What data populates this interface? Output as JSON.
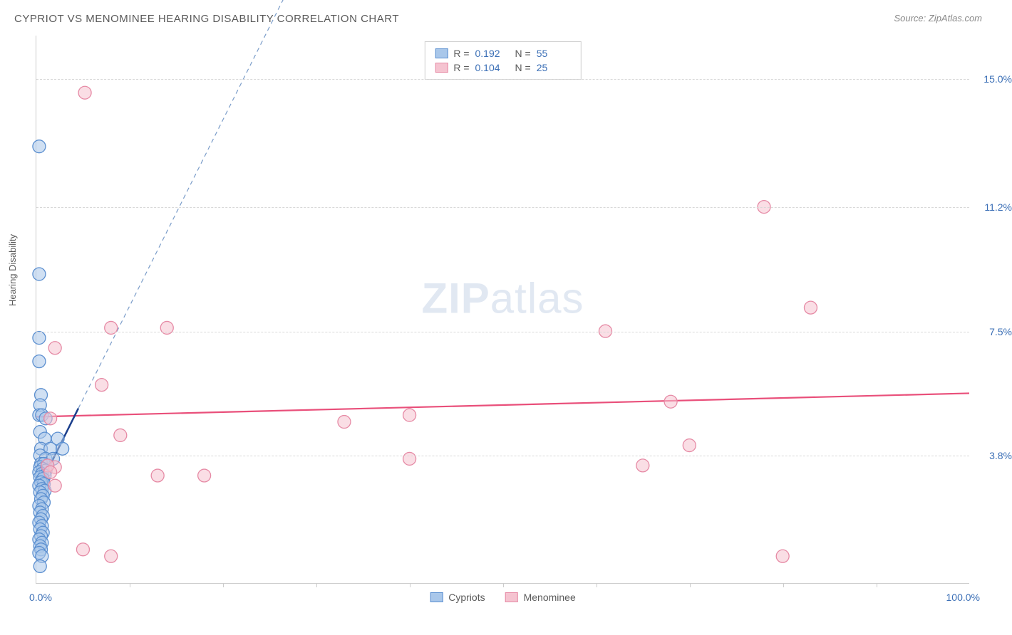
{
  "title": "CYPRIOT VS MENOMINEE HEARING DISABILITY CORRELATION CHART",
  "source": "Source: ZipAtlas.com",
  "ylabel": "Hearing Disability",
  "watermark_bold": "ZIP",
  "watermark_light": "atlas",
  "xaxis": {
    "min_label": "0.0%",
    "max_label": "100.0%",
    "tick_positions_pct": [
      10,
      20,
      30,
      40,
      50,
      60,
      70,
      80,
      90
    ]
  },
  "yaxis": {
    "ticks": [
      {
        "label": "15.0%",
        "value": 15.0
      },
      {
        "label": "11.2%",
        "value": 11.2
      },
      {
        "label": "7.5%",
        "value": 7.5
      },
      {
        "label": "3.8%",
        "value": 3.8
      }
    ],
    "min": 0,
    "max": 16.3
  },
  "legend_stats": [
    {
      "series": "cypriots",
      "r_label": "R =",
      "r_value": "0.192",
      "n_label": "N =",
      "n_value": "55"
    },
    {
      "series": "menominee",
      "r_label": "R =",
      "r_value": "0.104",
      "n_label": "N =",
      "n_value": "25"
    }
  ],
  "legend_bottom": [
    {
      "series": "cypriots",
      "label": "Cypriots"
    },
    {
      "series": "menominee",
      "label": "Menominee"
    }
  ],
  "colors": {
    "cypriots_fill": "#a9c7ea",
    "cypriots_stroke": "#5b8fd0",
    "menominee_fill": "#f5c3d0",
    "menominee_stroke": "#e68aa5",
    "trend_blue_solid": "#1a3e8c",
    "trend_blue_dash": "#7a9cc9",
    "trend_pink": "#e94f7a",
    "axis_text": "#3b6fb6",
    "grid": "#d8d8d8"
  },
  "marker_radius": 9,
  "marker_opacity": 0.55,
  "trend_lines": {
    "blue_solid": {
      "x1": 0.2,
      "y1": 2.8,
      "x2": 4.5,
      "y2": 5.2,
      "width": 2.5
    },
    "blue_dash": {
      "x1": 4.5,
      "y1": 5.2,
      "x2": 33,
      "y2": 21.0,
      "width": 1.2,
      "dash": "6,5"
    },
    "pink": {
      "x1": 0,
      "y1": 4.95,
      "x2": 100,
      "y2": 5.65,
      "width": 2.2
    }
  },
  "series": {
    "cypriots": [
      {
        "x": 0.3,
        "y": 13.0
      },
      {
        "x": 0.3,
        "y": 9.2
      },
      {
        "x": 0.3,
        "y": 7.3
      },
      {
        "x": 0.3,
        "y": 6.6
      },
      {
        "x": 0.5,
        "y": 5.6
      },
      {
        "x": 0.4,
        "y": 5.3
      },
      {
        "x": 0.3,
        "y": 5.0
      },
      {
        "x": 0.6,
        "y": 5.0
      },
      {
        "x": 1.0,
        "y": 4.9
      },
      {
        "x": 0.4,
        "y": 4.5
      },
      {
        "x": 0.9,
        "y": 4.3
      },
      {
        "x": 2.3,
        "y": 4.3
      },
      {
        "x": 0.5,
        "y": 4.0
      },
      {
        "x": 1.5,
        "y": 4.0
      },
      {
        "x": 2.8,
        "y": 4.0
      },
      {
        "x": 0.4,
        "y": 3.8
      },
      {
        "x": 1.0,
        "y": 3.7
      },
      {
        "x": 1.8,
        "y": 3.7
      },
      {
        "x": 0.5,
        "y": 3.55
      },
      {
        "x": 0.8,
        "y": 3.55
      },
      {
        "x": 1.2,
        "y": 3.5
      },
      {
        "x": 0.4,
        "y": 3.45
      },
      {
        "x": 0.7,
        "y": 3.4
      },
      {
        "x": 1.0,
        "y": 3.35
      },
      {
        "x": 0.3,
        "y": 3.3
      },
      {
        "x": 0.6,
        "y": 3.25
      },
      {
        "x": 0.9,
        "y": 3.2
      },
      {
        "x": 0.4,
        "y": 3.15
      },
      {
        "x": 0.7,
        "y": 3.1
      },
      {
        "x": 0.5,
        "y": 3.0
      },
      {
        "x": 0.8,
        "y": 2.95
      },
      {
        "x": 0.3,
        "y": 2.9
      },
      {
        "x": 0.6,
        "y": 2.8
      },
      {
        "x": 0.9,
        "y": 2.75
      },
      {
        "x": 0.4,
        "y": 2.7
      },
      {
        "x": 0.7,
        "y": 2.6
      },
      {
        "x": 0.5,
        "y": 2.5
      },
      {
        "x": 0.8,
        "y": 2.4
      },
      {
        "x": 0.3,
        "y": 2.3
      },
      {
        "x": 0.6,
        "y": 2.2
      },
      {
        "x": 0.4,
        "y": 2.1
      },
      {
        "x": 0.7,
        "y": 2.0
      },
      {
        "x": 0.5,
        "y": 1.9
      },
      {
        "x": 0.3,
        "y": 1.8
      },
      {
        "x": 0.6,
        "y": 1.7
      },
      {
        "x": 0.4,
        "y": 1.6
      },
      {
        "x": 0.7,
        "y": 1.5
      },
      {
        "x": 0.5,
        "y": 1.4
      },
      {
        "x": 0.3,
        "y": 1.3
      },
      {
        "x": 0.6,
        "y": 1.2
      },
      {
        "x": 0.4,
        "y": 1.1
      },
      {
        "x": 0.5,
        "y": 1.0
      },
      {
        "x": 0.3,
        "y": 0.9
      },
      {
        "x": 0.6,
        "y": 0.8
      },
      {
        "x": 0.4,
        "y": 0.5
      }
    ],
    "menominee": [
      {
        "x": 5.2,
        "y": 14.6
      },
      {
        "x": 78,
        "y": 11.2
      },
      {
        "x": 83,
        "y": 8.2
      },
      {
        "x": 61,
        "y": 7.5
      },
      {
        "x": 8,
        "y": 7.6
      },
      {
        "x": 14,
        "y": 7.6
      },
      {
        "x": 2,
        "y": 7.0
      },
      {
        "x": 7,
        "y": 5.9
      },
      {
        "x": 68,
        "y": 5.4
      },
      {
        "x": 70,
        "y": 4.1
      },
      {
        "x": 9,
        "y": 4.4
      },
      {
        "x": 33,
        "y": 4.8
      },
      {
        "x": 40,
        "y": 5.0
      },
      {
        "x": 40,
        "y": 3.7
      },
      {
        "x": 65,
        "y": 3.5
      },
      {
        "x": 13,
        "y": 3.2
      },
      {
        "x": 18,
        "y": 3.2
      },
      {
        "x": 2,
        "y": 3.45
      },
      {
        "x": 1.5,
        "y": 4.9
      },
      {
        "x": 2,
        "y": 2.9
      },
      {
        "x": 5,
        "y": 1.0
      },
      {
        "x": 8,
        "y": 0.8
      },
      {
        "x": 80,
        "y": 0.8
      },
      {
        "x": 1.2,
        "y": 3.5
      },
      {
        "x": 1.5,
        "y": 3.3
      }
    ]
  }
}
